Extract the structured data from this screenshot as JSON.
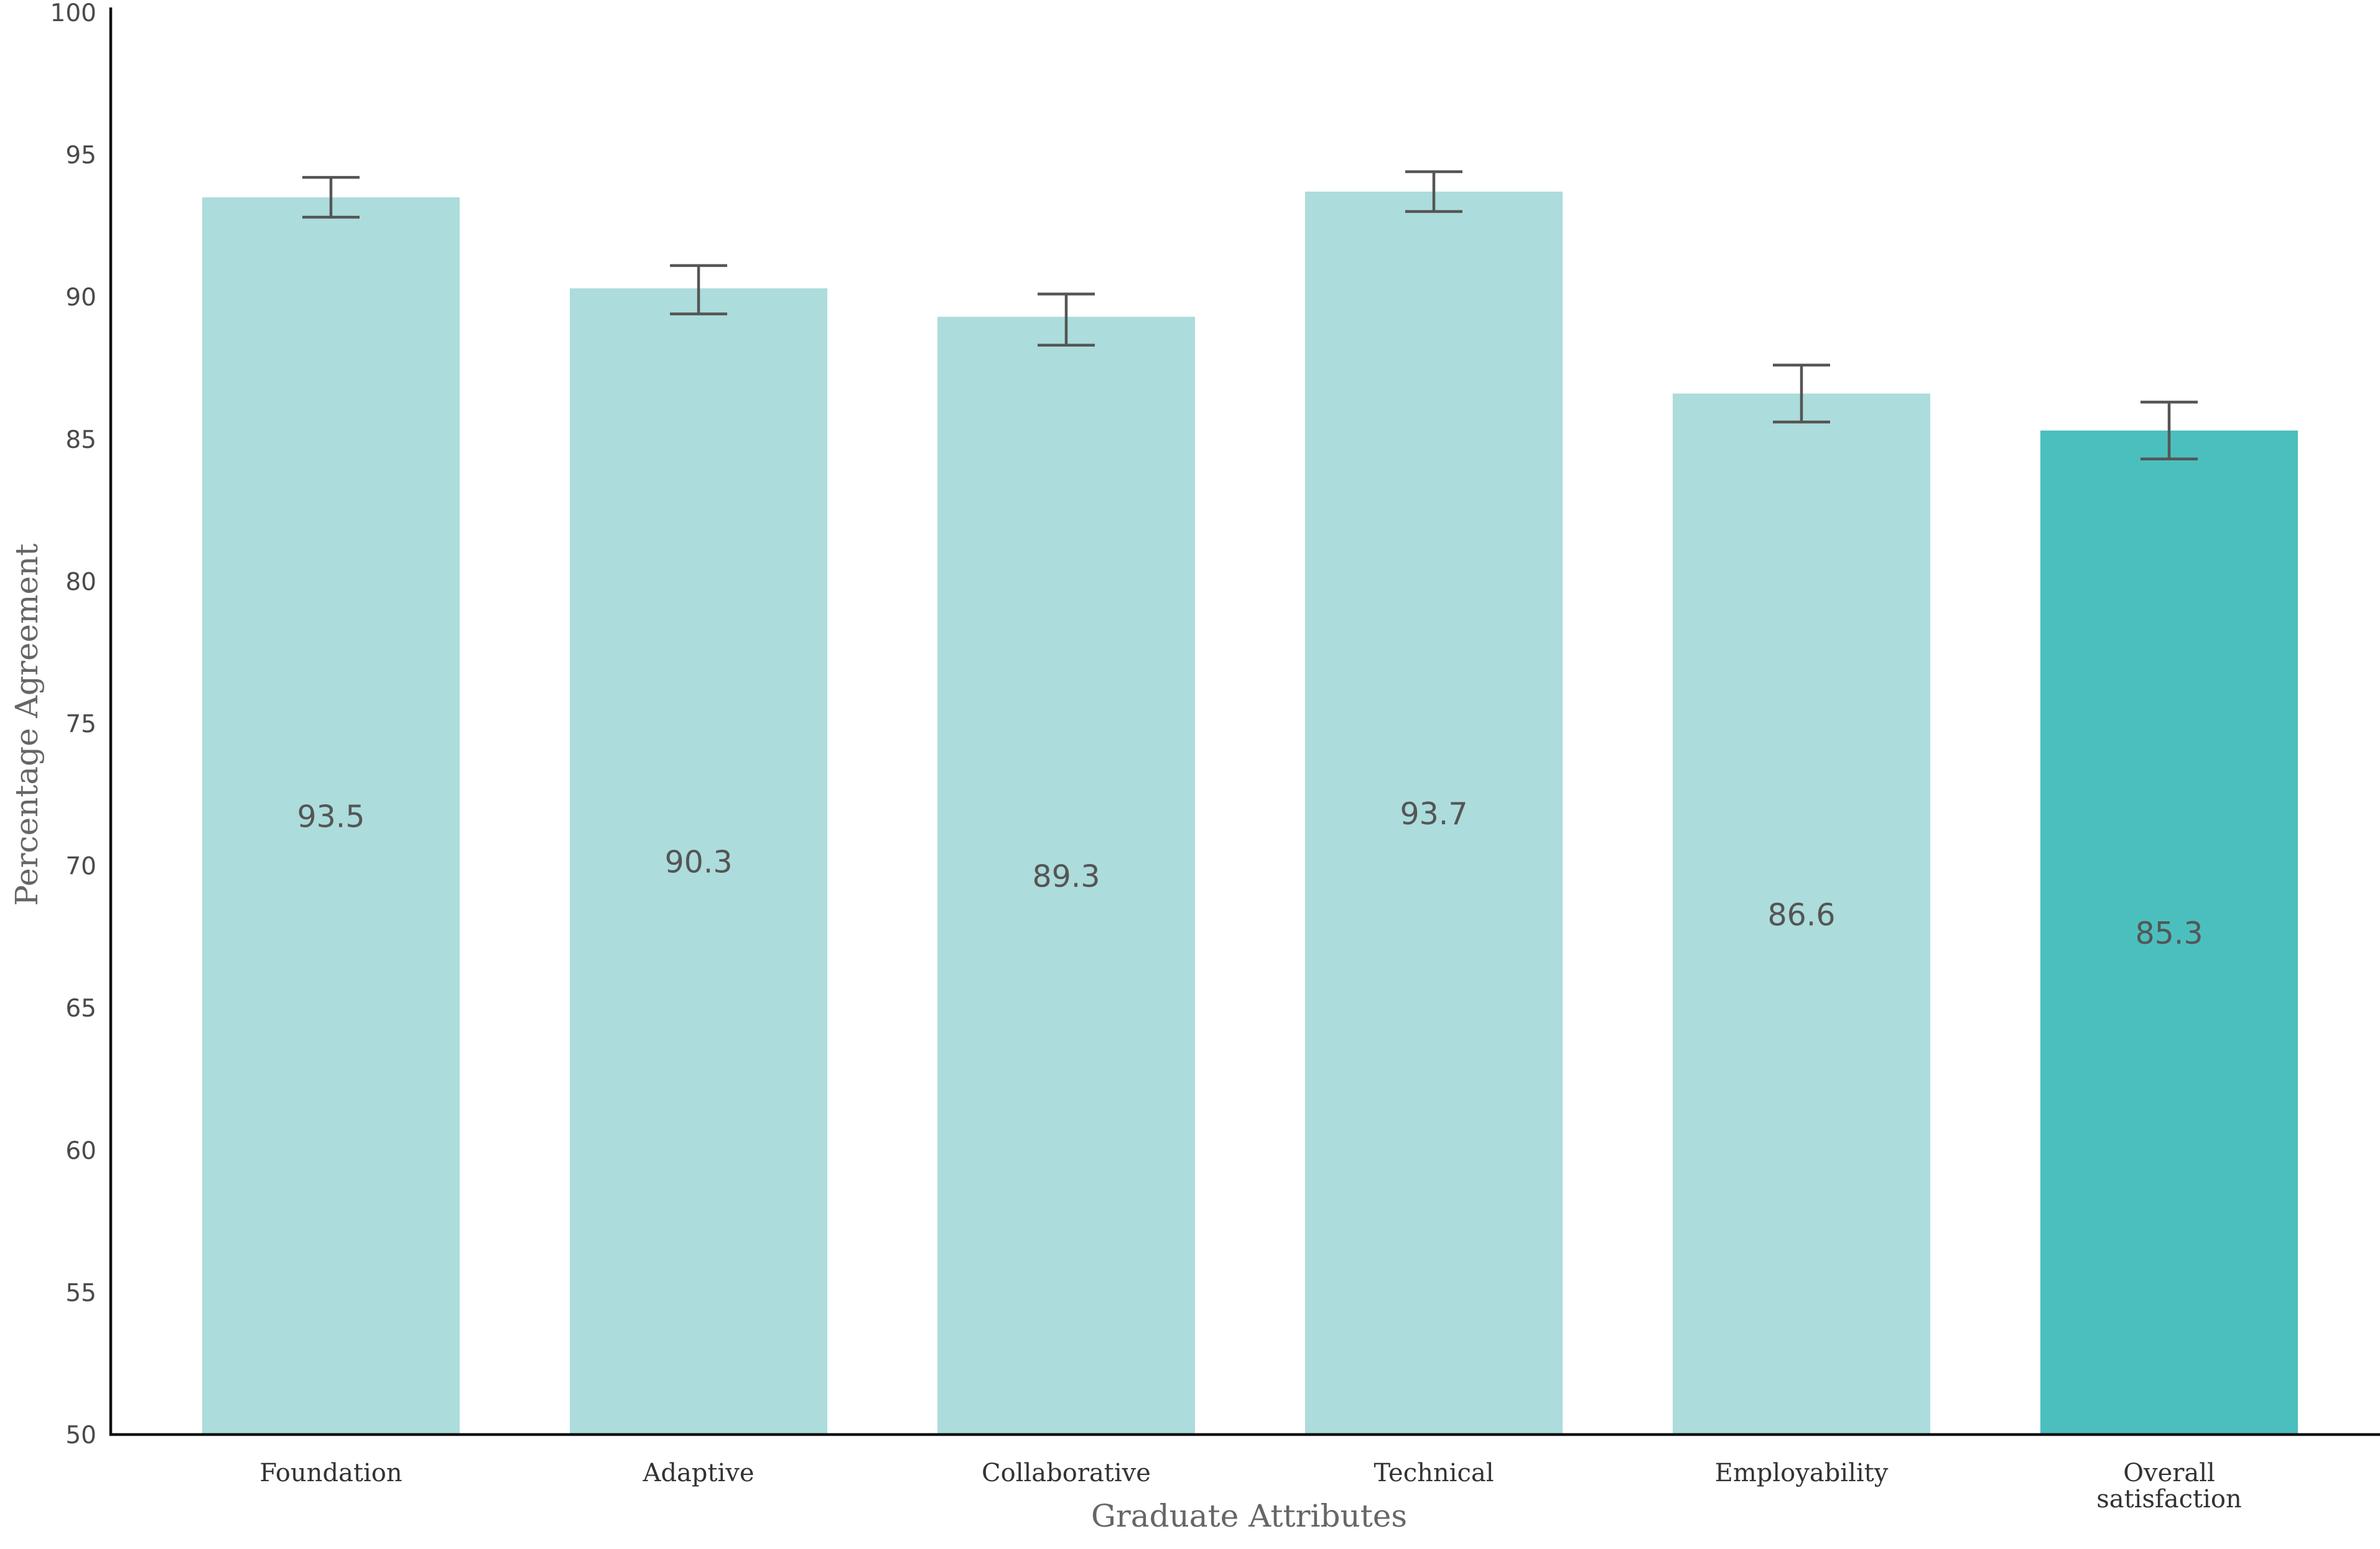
{
  "chart_data": {
    "type": "bar",
    "title": "",
    "xlabel": "Graduate Attributes",
    "ylabel": "Percentage Agreement",
    "ylim": [
      50,
      100
    ],
    "yticks": [
      50,
      55,
      60,
      65,
      70,
      75,
      80,
      85,
      90,
      95,
      100
    ],
    "grid": false,
    "categories": [
      [
        "Foundation"
      ],
      [
        "Adaptive"
      ],
      [
        "Collaborative"
      ],
      [
        "Technical"
      ],
      [
        "Employability"
      ],
      [
        "Overall",
        "satisfaction"
      ]
    ],
    "values": [
      93.5,
      90.3,
      89.3,
      93.7,
      86.6,
      85.3
    ],
    "value_labels": [
      "93.5",
      "90.3",
      "89.3",
      "93.7",
      "86.6",
      "85.3"
    ],
    "error_bars": [
      {
        "low": 92.8,
        "high": 94.2
      },
      {
        "low": 89.4,
        "high": 91.1
      },
      {
        "low": 88.3,
        "high": 90.1
      },
      {
        "low": 93.0,
        "high": 94.4
      },
      {
        "low": 85.6,
        "high": 87.6
      },
      {
        "low": 84.3,
        "high": 86.3
      }
    ],
    "colors": [
      "#acdcdb",
      "#acdcdb",
      "#acdcdb",
      "#acdcdb",
      "#acdcdb",
      "#4bbfbe"
    ],
    "error_color": "#555555"
  }
}
